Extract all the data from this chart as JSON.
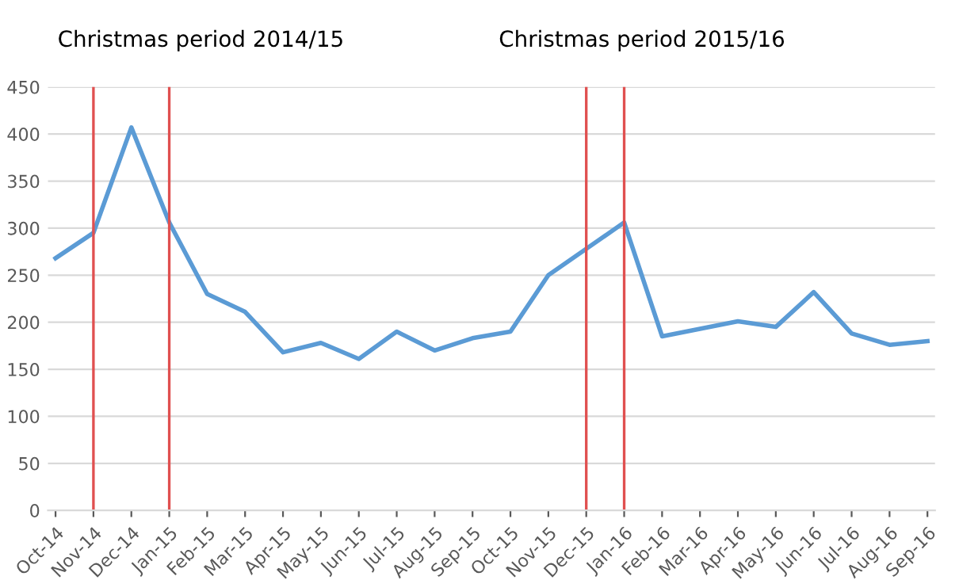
{
  "chart_data": {
    "type": "line",
    "categories": [
      "Oct-14",
      "Nov-14",
      "Dec-14",
      "Jan-15",
      "Feb-15",
      "Mar-15",
      "Apr-15",
      "May-15",
      "Jun-15",
      "Jul-15",
      "Aug-15",
      "Sep-15",
      "Oct-15",
      "Nov-15",
      "Dec-15",
      "Jan-16",
      "Feb-16",
      "Mar-16",
      "Apr-16",
      "May-16",
      "Jun-16",
      "Jul-16",
      "Aug-16",
      "Sep-16"
    ],
    "series": [
      {
        "color": "#5b9bd5",
        "values": [
          268,
          295,
          407,
          306,
          230,
          211,
          168,
          178,
          161,
          190,
          170,
          183,
          190,
          250,
          278,
          306,
          185,
          193,
          201,
          195,
          232,
          188,
          176,
          180
        ]
      }
    ],
    "ylim": [
      0,
      450
    ],
    "yticks": [
      0,
      50,
      100,
      150,
      200,
      250,
      300,
      350,
      400,
      450
    ],
    "grid": "y",
    "ref_lines": [
      {
        "axis": "x",
        "value": "Nov-14",
        "color": "#e05050"
      },
      {
        "axis": "x",
        "value": "Jan-15",
        "color": "#e05050"
      },
      {
        "axis": "x",
        "value": "Dec-15",
        "color": "#e05050"
      },
      {
        "axis": "x",
        "value": "Jan-16",
        "color": "#e05050"
      }
    ],
    "annotations": [
      "Christmas period 2014/15",
      "Christmas period 2015/16"
    ]
  }
}
